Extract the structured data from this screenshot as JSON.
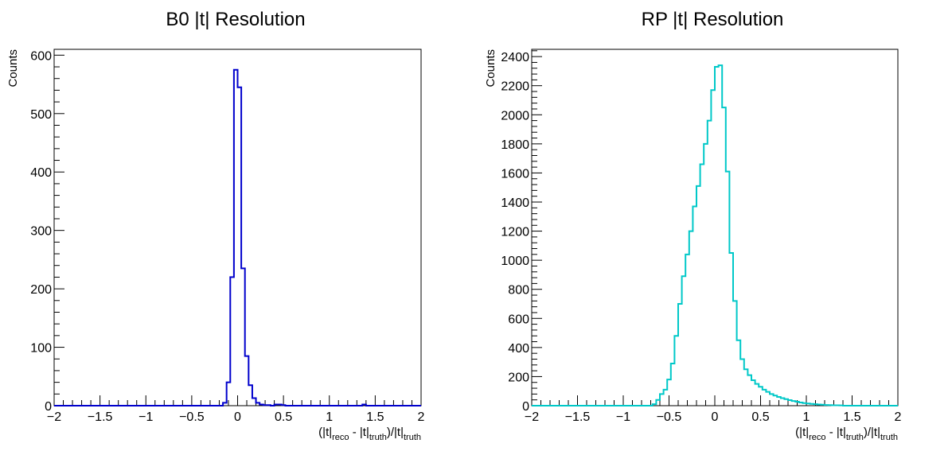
{
  "chart_data": [
    {
      "type": "histogram",
      "title": "B0 |t| Resolution",
      "ylabel": "Counts",
      "xlabel": {
        "prefix": "(|t|",
        "sub1": "reco",
        "mid": " - |t|",
        "sub2": "truth",
        "mid2": ")/|t|",
        "sub3": "truth"
      },
      "xlim": [
        -2,
        2
      ],
      "ylim": [
        0,
        610
      ],
      "xticks": [
        "−2",
        "−1.5",
        "−1",
        "−0.5",
        "0",
        "0.5",
        "1",
        "1.5",
        "2"
      ],
      "yticks": [
        "0",
        "100",
        "200",
        "300",
        "400",
        "500",
        "600"
      ],
      "color": "#0000cc",
      "bin_width": 0.04,
      "bins": [
        {
          "x": -0.16,
          "y": 5
        },
        {
          "x": -0.12,
          "y": 40
        },
        {
          "x": -0.08,
          "y": 220
        },
        {
          "x": -0.04,
          "y": 575
        },
        {
          "x": 0.0,
          "y": 545
        },
        {
          "x": 0.04,
          "y": 235
        },
        {
          "x": 0.08,
          "y": 85
        },
        {
          "x": 0.12,
          "y": 35
        },
        {
          "x": 0.16,
          "y": 13
        },
        {
          "x": 0.2,
          "y": 5
        },
        {
          "x": 0.24,
          "y": 2
        },
        {
          "x": 0.28,
          "y": 1
        },
        {
          "x": 0.32,
          "y": 1
        },
        {
          "x": 0.36,
          "y": 0
        },
        {
          "x": 0.4,
          "y": 2
        },
        {
          "x": 0.44,
          "y": 2
        },
        {
          "x": 0.48,
          "y": 1
        },
        {
          "x": 0.52,
          "y": 0
        },
        {
          "x": 1.36,
          "y": 2
        }
      ]
    },
    {
      "type": "histogram",
      "title": "RP |t| Resolution",
      "ylabel": "Counts",
      "xlabel": {
        "prefix": "(|t|",
        "sub1": "reco",
        "mid": " - |t|",
        "sub2": "truth",
        "mid2": ")/|t|",
        "sub3": "truth"
      },
      "xlim": [
        -2,
        2
      ],
      "ylim": [
        0,
        2450
      ],
      "xticks": [
        "−2",
        "−1.5",
        "−1",
        "−0.5",
        "0",
        "0.5",
        "1",
        "1.5",
        "2"
      ],
      "yticks": [
        "0",
        "200",
        "400",
        "600",
        "800",
        "1000",
        "1200",
        "1400",
        "1600",
        "1800",
        "2000",
        "2200",
        "2400"
      ],
      "color": "#00c8c8",
      "bin_width": 0.04,
      "bins": [
        {
          "x": -0.68,
          "y": 10
        },
        {
          "x": -0.64,
          "y": 40
        },
        {
          "x": -0.6,
          "y": 80
        },
        {
          "x": -0.56,
          "y": 110
        },
        {
          "x": -0.52,
          "y": 180
        },
        {
          "x": -0.48,
          "y": 290
        },
        {
          "x": -0.44,
          "y": 480
        },
        {
          "x": -0.4,
          "y": 700
        },
        {
          "x": -0.36,
          "y": 890
        },
        {
          "x": -0.32,
          "y": 1040
        },
        {
          "x": -0.28,
          "y": 1200
        },
        {
          "x": -0.24,
          "y": 1370
        },
        {
          "x": -0.2,
          "y": 1510
        },
        {
          "x": -0.16,
          "y": 1660
        },
        {
          "x": -0.12,
          "y": 1800
        },
        {
          "x": -0.08,
          "y": 1960
        },
        {
          "x": -0.04,
          "y": 2170
        },
        {
          "x": 0.0,
          "y": 2330
        },
        {
          "x": 0.04,
          "y": 2340
        },
        {
          "x": 0.08,
          "y": 2050
        },
        {
          "x": 0.12,
          "y": 1610
        },
        {
          "x": 0.16,
          "y": 1050
        },
        {
          "x": 0.2,
          "y": 720
        },
        {
          "x": 0.24,
          "y": 450
        },
        {
          "x": 0.28,
          "y": 320
        },
        {
          "x": 0.32,
          "y": 250
        },
        {
          "x": 0.36,
          "y": 210
        },
        {
          "x": 0.4,
          "y": 175
        },
        {
          "x": 0.44,
          "y": 150
        },
        {
          "x": 0.48,
          "y": 130
        },
        {
          "x": 0.52,
          "y": 110
        },
        {
          "x": 0.56,
          "y": 95
        },
        {
          "x": 0.6,
          "y": 80
        },
        {
          "x": 0.64,
          "y": 70
        },
        {
          "x": 0.68,
          "y": 60
        },
        {
          "x": 0.72,
          "y": 52
        },
        {
          "x": 0.76,
          "y": 45
        },
        {
          "x": 0.8,
          "y": 38
        },
        {
          "x": 0.84,
          "y": 32
        },
        {
          "x": 0.88,
          "y": 27
        },
        {
          "x": 0.92,
          "y": 22
        },
        {
          "x": 0.96,
          "y": 18
        },
        {
          "x": 1.0,
          "y": 15
        },
        {
          "x": 1.04,
          "y": 12
        },
        {
          "x": 1.08,
          "y": 10
        },
        {
          "x": 1.12,
          "y": 8
        },
        {
          "x": 1.16,
          "y": 7
        },
        {
          "x": 1.2,
          "y": 5
        },
        {
          "x": 1.24,
          "y": 4
        },
        {
          "x": 1.28,
          "y": 3
        },
        {
          "x": 1.32,
          "y": 3
        },
        {
          "x": 1.36,
          "y": 2
        }
      ]
    }
  ]
}
